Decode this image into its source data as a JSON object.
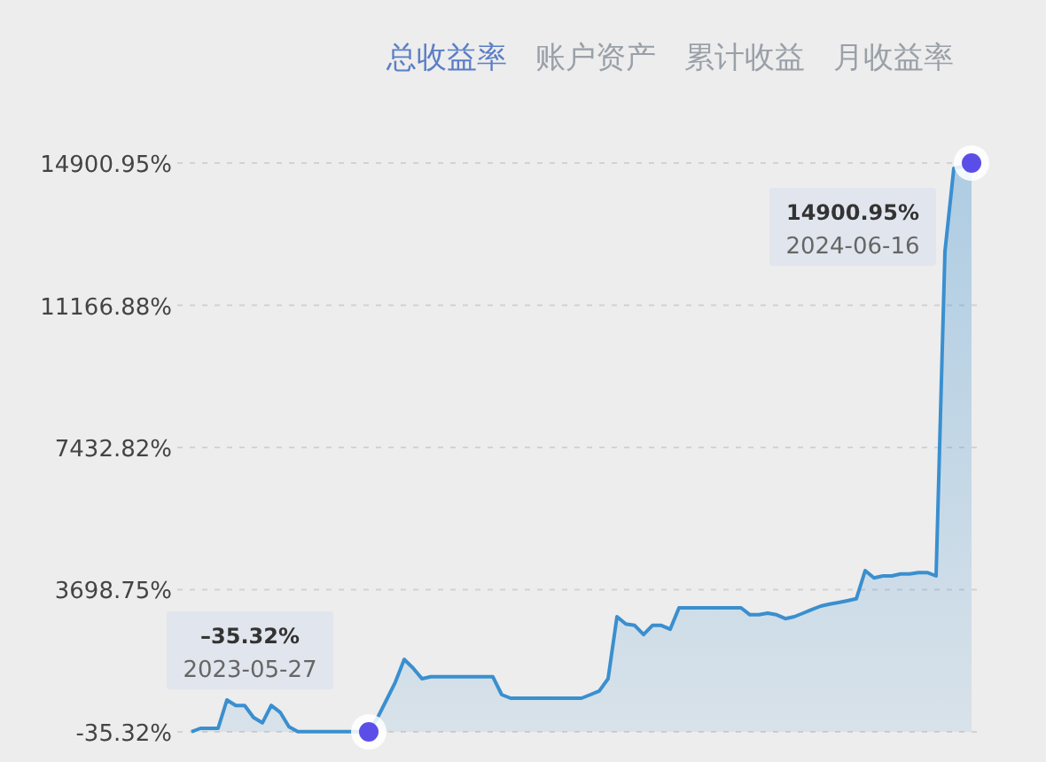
{
  "chart_data": {
    "type": "area",
    "title": "总收益率",
    "annotations": [
      "账户资产",
      "累计收益",
      "月收益率",
      "–35.32%",
      "2023-05-27",
      "14900.95%",
      "2024-06-16"
    ],
    "categories": [
      null,
      null,
      null,
      null,
      null,
      null,
      null,
      null,
      null,
      null,
      null,
      null,
      null,
      null,
      null,
      null,
      null,
      null,
      null,
      null,
      null,
      null,
      null,
      null,
      null,
      null,
      null,
      null,
      null,
      null,
      null,
      null,
      null,
      null,
      null,
      null,
      null,
      null,
      null,
      null,
      null,
      null,
      null,
      null,
      null,
      null,
      null,
      null,
      null,
      null,
      null,
      null,
      null,
      null,
      null,
      null,
      null,
      null,
      null,
      null,
      null,
      null,
      null,
      null,
      null,
      null,
      null,
      null,
      null,
      null,
      null,
      null,
      null,
      null,
      null,
      null,
      null,
      null,
      null,
      null,
      null,
      null,
      null,
      null,
      null,
      null,
      null,
      null,
      null
    ],
    "series": [
      {
        "color": "#3a8fcf",
        "values": [
          -30,
          60,
          60,
          60,
          800,
          660,
          660,
          340,
          200,
          660,
          480,
          100,
          -30,
          -30,
          -30,
          -30,
          -30,
          -30,
          -30,
          -30,
          -35.32,
          340,
          800,
          1270,
          1870,
          1640,
          1360,
          1410,
          1410,
          1410,
          1410,
          1410,
          1410,
          1410,
          1410,
          940,
          850,
          850,
          850,
          850,
          850,
          850,
          850,
          850,
          850,
          940,
          1040,
          1360,
          2990,
          2800,
          2760,
          2520,
          2760,
          2760,
          2660,
          3220,
          3220,
          3220,
          3220,
          3220,
          3220,
          3220,
          3220,
          3040,
          3040,
          3080,
          3040,
          2940,
          2990,
          3080,
          3180,
          3270,
          3320,
          3360,
          3410,
          3460,
          4200,
          4010,
          4060,
          4060,
          4110,
          4110,
          4150,
          4150,
          4060,
          12580,
          14760,
          14810,
          14900.95
        ]
      }
    ],
    "ylim": [
      -35.32,
      14900.95
    ],
    "yticks": [
      {
        "value": -35.32,
        "label": "-35.32%"
      },
      {
        "value": 3698.75,
        "label": "3698.75%"
      },
      {
        "value": 7432.82,
        "label": "7432.82%"
      },
      {
        "value": 11166.88,
        "label": "11166.88%"
      },
      {
        "value": 14900.95,
        "label": "14900.95%"
      }
    ],
    "grid": "y",
    "marker": "none",
    "line_style": "solid"
  }
}
